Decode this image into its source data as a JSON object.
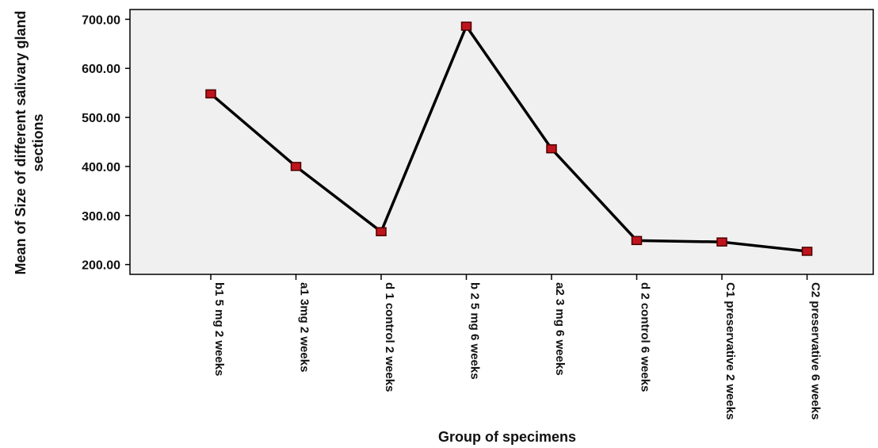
{
  "chart_data": {
    "type": "line",
    "xlabel": "Group of specimens",
    "ylabel_lines": [
      "Mean of Size of different salivary gland",
      "sections"
    ],
    "categories": [
      "b1 5 mg 2  weeks",
      "a1 3mg 2 weeks",
      "d 1 control 2 weeks",
      "b 2 5 mg 6 weeks",
      "a2 3 mg 6 weeks",
      "d 2 control 6 weeks",
      "C1 preservative 2 weeks",
      "C2 preservative 6 weeks"
    ],
    "values": [
      548,
      400,
      267,
      686,
      436,
      249,
      246,
      227
    ],
    "yticks": [
      "200.00",
      "300.00",
      "400.00",
      "500.00",
      "600.00",
      "700.00"
    ],
    "ylim": [
      180,
      720
    ],
    "grid": false,
    "colors": {
      "line": "#000000",
      "marker_fill": "#c0141c",
      "marker_stroke": "#4a0000",
      "plot_bg": "#f0f0f0"
    }
  }
}
